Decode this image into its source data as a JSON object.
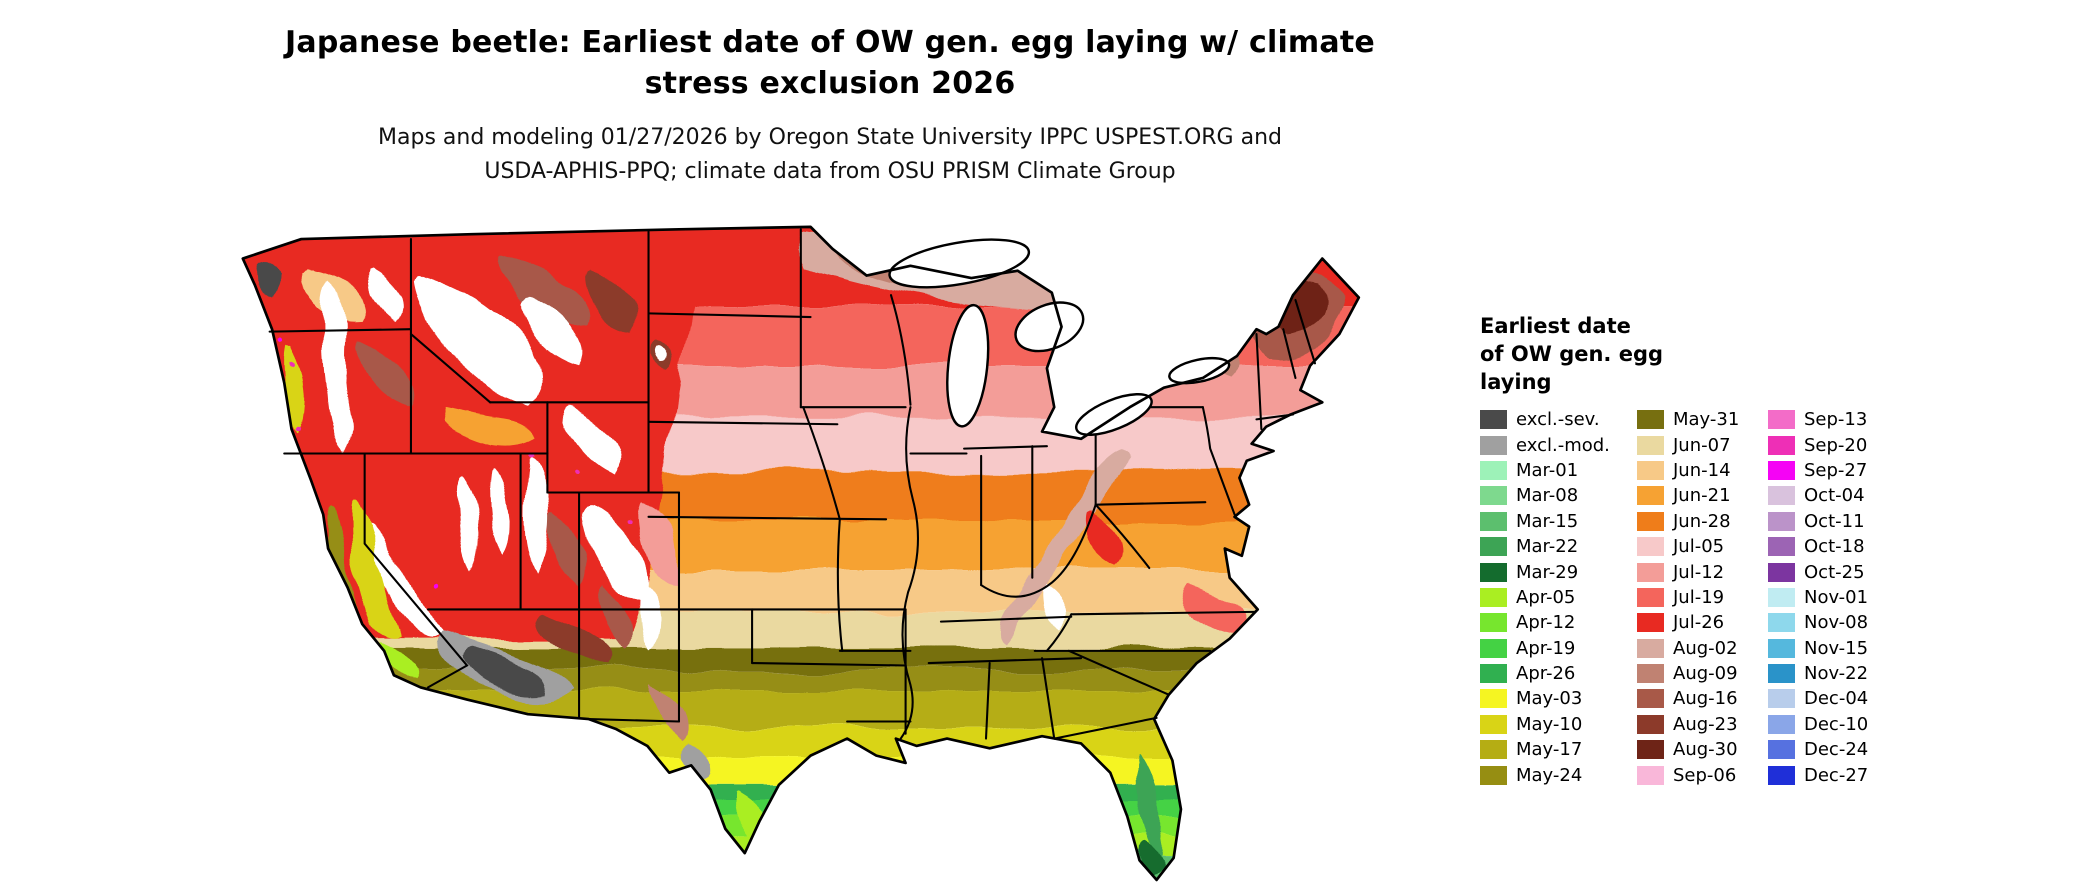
{
  "title": {
    "line1": "Japanese beetle: Earliest date of OW gen. egg laying w/ climate",
    "line2": "stress exclusion 2026"
  },
  "subtitle": {
    "line1": "Maps and modeling 01/27/2026 by Oregon State University IPPC USPEST.ORG and",
    "line2": "USDA-APHIS-PPQ; climate data from OSU PRISM Climate Group"
  },
  "legend": {
    "title_lines": [
      "Earliest date",
      "of OW gen. egg",
      "laying"
    ],
    "columns": [
      {
        "entries": [
          {
            "label": "excl.-sev.",
            "color_key": "excl_sev"
          },
          {
            "label": "excl.-mod.",
            "color_key": "excl_mod"
          },
          {
            "label": "Mar-01",
            "color_key": "mar01"
          },
          {
            "label": "Mar-08",
            "color_key": "mar08"
          },
          {
            "label": "Mar-15",
            "color_key": "mar15"
          },
          {
            "label": "Mar-22",
            "color_key": "mar22"
          },
          {
            "label": "Mar-29",
            "color_key": "mar29"
          },
          {
            "label": "Apr-05",
            "color_key": "apr05"
          },
          {
            "label": "Apr-12",
            "color_key": "apr12"
          },
          {
            "label": "Apr-19",
            "color_key": "apr19"
          },
          {
            "label": "Apr-26",
            "color_key": "apr26"
          },
          {
            "label": "May-03",
            "color_key": "may03"
          },
          {
            "label": "May-10",
            "color_key": "may10"
          },
          {
            "label": "May-17",
            "color_key": "may17"
          },
          {
            "label": "May-24",
            "color_key": "may24"
          }
        ]
      },
      {
        "entries": [
          {
            "label": "May-31",
            "color_key": "may31"
          },
          {
            "label": "Jun-07",
            "color_key": "jun07"
          },
          {
            "label": "Jun-14",
            "color_key": "jun14"
          },
          {
            "label": "Jun-21",
            "color_key": "jun21"
          },
          {
            "label": "Jun-28",
            "color_key": "jun28"
          },
          {
            "label": "Jul-05",
            "color_key": "jul05"
          },
          {
            "label": "Jul-12",
            "color_key": "jul12"
          },
          {
            "label": "Jul-19",
            "color_key": "jul19"
          },
          {
            "label": "Jul-26",
            "color_key": "jul26"
          },
          {
            "label": "Aug-02",
            "color_key": "aug02"
          },
          {
            "label": "Aug-09",
            "color_key": "aug09"
          },
          {
            "label": "Aug-16",
            "color_key": "aug16"
          },
          {
            "label": "Aug-23",
            "color_key": "aug23"
          },
          {
            "label": "Aug-30",
            "color_key": "aug30"
          },
          {
            "label": "Sep-06",
            "color_key": "sep06"
          }
        ]
      },
      {
        "entries": [
          {
            "label": "Sep-13",
            "color_key": "sep13"
          },
          {
            "label": "Sep-20",
            "color_key": "sep20"
          },
          {
            "label": "Sep-27",
            "color_key": "sep27"
          },
          {
            "label": "Oct-04",
            "color_key": "oct04"
          },
          {
            "label": "Oct-11",
            "color_key": "oct11"
          },
          {
            "label": "Oct-18",
            "color_key": "oct18"
          },
          {
            "label": "Oct-25",
            "color_key": "oct25"
          },
          {
            "label": "Nov-01",
            "color_key": "nov01"
          },
          {
            "label": "Nov-08",
            "color_key": "nov08"
          },
          {
            "label": "Nov-15",
            "color_key": "nov15"
          },
          {
            "label": "Nov-22",
            "color_key": "nov22"
          },
          {
            "label": "Dec-04",
            "color_key": "dec04"
          },
          {
            "label": "Dec-10",
            "color_key": "dec10"
          },
          {
            "label": "Dec-24",
            "color_key": "dec24"
          },
          {
            "label": "Dec-27",
            "color_key": "dec27"
          }
        ]
      }
    ]
  },
  "palette": {
    "excl_sev": "#4a4a4a",
    "excl_mod": "#a0a0a0",
    "mar01": "#9df2b8",
    "mar08": "#7ed98e",
    "mar15": "#5cbf6e",
    "mar22": "#3da455",
    "mar29": "#146c2e",
    "apr05": "#aaee22",
    "apr12": "#77e62e",
    "apr19": "#44d244",
    "apr26": "#30b050",
    "may03": "#f5f522",
    "may10": "#d9d416",
    "may17": "#b5ad14",
    "may24": "#968e12",
    "may31": "#776f10",
    "jun07": "#ead9a0",
    "jun14": "#f7c987",
    "jun21": "#f6a233",
    "jun28": "#ef7d1a",
    "jul05": "#f7c9c9",
    "jul12": "#f39d98",
    "jul19": "#f4655c",
    "jul26": "#e82a22",
    "aug02": "#d8aba0",
    "aug09": "#c08272",
    "aug16": "#a85948",
    "aug23": "#8c3a2a",
    "aug30": "#6e2417",
    "sep06": "#f9b7d9",
    "sep13": "#f36cc8",
    "sep20": "#ee2fb6",
    "sep27": "#f503f5",
    "oct04": "#d9c2dd",
    "oct11": "#bb93c9",
    "oct18": "#9c64b4",
    "oct25": "#7c35a0",
    "nov01": "#c0ecf2",
    "nov08": "#8ed8ec",
    "nov15": "#55b8dd",
    "nov22": "#2a93c9",
    "dec04": "#b8cdeb",
    "dec10": "#8aa6e8",
    "dec24": "#5671e0",
    "dec27": "#1f2fd8",
    "no_data": "#ffffff",
    "boundary": "#000000"
  }
}
